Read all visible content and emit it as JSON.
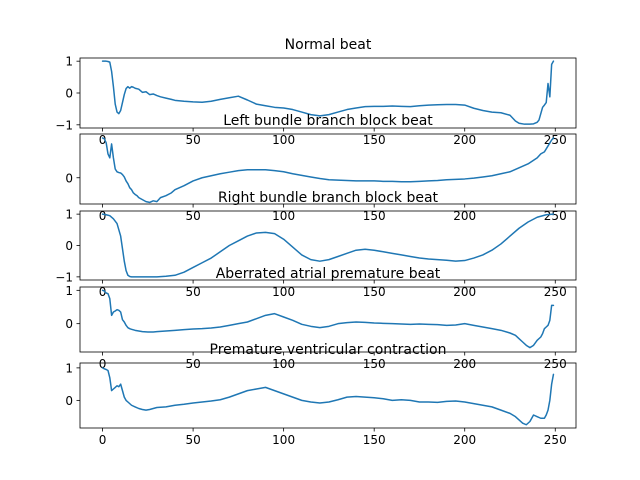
{
  "chart_data": [
    {
      "type": "line",
      "title": "Normal beat",
      "xlim": [
        -12.45,
        261.45
      ],
      "ylim": [
        -1.1,
        1.1
      ],
      "xticks": [
        0,
        50,
        100,
        150,
        200,
        250
      ],
      "yticks": [
        -1,
        0,
        1
      ],
      "series": [
        {
          "color": "#1f77b4",
          "x": [
            0,
            1,
            2,
            3,
            4,
            5,
            6,
            7,
            8,
            9,
            10,
            11,
            12,
            13,
            14,
            15,
            16,
            17,
            18,
            20,
            22,
            24,
            26,
            28,
            30,
            32,
            35,
            38,
            40,
            45,
            50,
            55,
            60,
            65,
            70,
            75,
            80,
            85,
            90,
            95,
            100,
            105,
            110,
            115,
            120,
            125,
            130,
            135,
            140,
            145,
            150,
            155,
            160,
            165,
            170,
            175,
            180,
            185,
            190,
            195,
            200,
            205,
            210,
            215,
            220,
            225,
            228,
            230,
            233,
            236,
            238,
            240,
            241,
            242,
            243,
            244,
            245,
            246,
            247,
            248,
            249
          ],
          "y": [
            1.0,
            1.0,
            1.0,
            0.99,
            0.97,
            0.68,
            0.2,
            -0.35,
            -0.6,
            -0.65,
            -0.55,
            -0.3,
            -0.05,
            0.14,
            0.2,
            0.15,
            0.2,
            0.18,
            0.15,
            0.12,
            0.02,
            0.04,
            -0.05,
            -0.03,
            -0.08,
            -0.12,
            -0.16,
            -0.2,
            -0.23,
            -0.26,
            -0.28,
            -0.29,
            -0.26,
            -0.2,
            -0.15,
            -0.1,
            -0.22,
            -0.35,
            -0.4,
            -0.45,
            -0.47,
            -0.52,
            -0.6,
            -0.68,
            -0.72,
            -0.68,
            -0.6,
            -0.52,
            -0.47,
            -0.43,
            -0.42,
            -0.42,
            -0.41,
            -0.42,
            -0.43,
            -0.4,
            -0.38,
            -0.37,
            -0.36,
            -0.36,
            -0.38,
            -0.48,
            -0.55,
            -0.6,
            -0.62,
            -0.7,
            -0.88,
            -0.95,
            -0.98,
            -0.98,
            -0.97,
            -0.92,
            -0.85,
            -0.65,
            -0.45,
            -0.38,
            -0.3,
            0.3,
            -0.12,
            0.9,
            1.0
          ]
        }
      ]
    },
    {
      "type": "line",
      "title": "Left bundle branch block beat",
      "xlim": [
        -12.45,
        261.45
      ],
      "ylim": [
        -0.66,
        1.1
      ],
      "xticks": [
        0,
        50,
        100,
        150,
        200,
        250
      ],
      "yticks": [
        0
      ],
      "series": [
        {
          "color": "#1f77b4",
          "x": [
            0,
            1,
            2,
            3,
            4,
            5,
            6,
            7,
            8,
            9,
            10,
            11,
            12,
            13,
            14,
            15,
            16,
            17,
            18,
            19,
            20,
            22,
            24,
            26,
            28,
            30,
            32,
            35,
            38,
            40,
            45,
            50,
            55,
            60,
            65,
            70,
            75,
            80,
            85,
            90,
            95,
            100,
            105,
            110,
            115,
            120,
            125,
            130,
            135,
            140,
            145,
            150,
            155,
            160,
            165,
            170,
            175,
            180,
            185,
            190,
            195,
            200,
            205,
            210,
            215,
            220,
            225,
            230,
            235,
            240,
            242,
            244,
            246,
            248,
            249
          ],
          "y": [
            1.0,
            0.98,
            0.88,
            0.6,
            0.5,
            0.85,
            0.5,
            0.22,
            0.15,
            0.13,
            0.12,
            0.08,
            0.02,
            -0.08,
            -0.15,
            -0.25,
            -0.3,
            -0.38,
            -0.42,
            -0.45,
            -0.5,
            -0.55,
            -0.6,
            -0.62,
            -0.58,
            -0.6,
            -0.5,
            -0.45,
            -0.38,
            -0.3,
            -0.2,
            -0.08,
            0.0,
            0.05,
            0.1,
            0.14,
            0.18,
            0.2,
            0.2,
            0.2,
            0.18,
            0.15,
            0.1,
            0.06,
            0.02,
            -0.02,
            -0.05,
            -0.06,
            -0.07,
            -0.08,
            -0.08,
            -0.08,
            -0.09,
            -0.09,
            -0.1,
            -0.1,
            -0.09,
            -0.08,
            -0.07,
            -0.05,
            -0.04,
            -0.03,
            -0.01,
            0.02,
            0.05,
            0.1,
            0.15,
            0.25,
            0.35,
            0.5,
            0.6,
            0.65,
            0.8,
            0.95,
            1.0
          ]
        }
      ]
    },
    {
      "type": "line",
      "title": "Right bundle branch block beat",
      "xlim": [
        -12.45,
        261.45
      ],
      "ylim": [
        -1.1,
        1.1
      ],
      "xticks": [
        0,
        50,
        100,
        150,
        200,
        250
      ],
      "yticks": [
        -1,
        0,
        1
      ],
      "series": [
        {
          "color": "#1f77b4",
          "x": [
            0,
            2,
            4,
            6,
            8,
            10,
            11,
            12,
            13,
            14,
            15,
            16,
            18,
            20,
            25,
            30,
            35,
            40,
            45,
            50,
            55,
            60,
            65,
            70,
            75,
            80,
            85,
            90,
            95,
            100,
            105,
            110,
            115,
            120,
            125,
            130,
            135,
            140,
            145,
            150,
            155,
            160,
            165,
            170,
            175,
            180,
            185,
            190,
            195,
            200,
            205,
            210,
            215,
            220,
            225,
            230,
            235,
            240,
            245,
            249
          ],
          "y": [
            1.0,
            0.98,
            0.95,
            0.85,
            0.7,
            0.3,
            -0.1,
            -0.5,
            -0.8,
            -0.95,
            -0.99,
            -1.0,
            -1.0,
            -1.0,
            -1.0,
            -1.0,
            -0.98,
            -0.95,
            -0.85,
            -0.7,
            -0.55,
            -0.4,
            -0.2,
            0.0,
            0.15,
            0.3,
            0.4,
            0.42,
            0.38,
            0.2,
            -0.05,
            -0.3,
            -0.45,
            -0.5,
            -0.45,
            -0.35,
            -0.25,
            -0.15,
            -0.12,
            -0.15,
            -0.2,
            -0.25,
            -0.3,
            -0.35,
            -0.4,
            -0.43,
            -0.45,
            -0.47,
            -0.5,
            -0.48,
            -0.4,
            -0.3,
            -0.15,
            0.05,
            0.3,
            0.55,
            0.75,
            0.9,
            0.98,
            1.0
          ]
        }
      ]
    },
    {
      "type": "line",
      "title": "Aberrated atrial premature beat",
      "xlim": [
        -12.45,
        261.45
      ],
      "ylim": [
        -0.85,
        1.1
      ],
      "xticks": [
        0,
        50,
        100,
        150,
        200,
        250
      ],
      "yticks": [
        0,
        1
      ],
      "series": [
        {
          "color": "#1f77b4",
          "x": [
            0,
            1,
            2,
            3,
            4,
            5,
            6,
            7,
            8,
            9,
            10,
            11,
            12,
            13,
            14,
            15,
            16,
            18,
            20,
            22,
            25,
            28,
            30,
            35,
            40,
            45,
            50,
            55,
            60,
            65,
            70,
            75,
            80,
            85,
            90,
            95,
            100,
            105,
            110,
            115,
            120,
            125,
            130,
            135,
            140,
            145,
            150,
            155,
            160,
            165,
            170,
            175,
            180,
            185,
            190,
            195,
            200,
            205,
            210,
            215,
            220,
            225,
            228,
            230,
            232,
            234,
            236,
            238,
            240,
            242,
            243,
            244,
            245,
            246,
            247,
            248,
            249
          ],
          "y": [
            1.0,
            0.98,
            0.92,
            0.9,
            0.75,
            0.25,
            0.35,
            0.38,
            0.42,
            0.4,
            0.35,
            0.12,
            0.05,
            -0.05,
            -0.12,
            -0.15,
            -0.17,
            -0.2,
            -0.22,
            -0.24,
            -0.25,
            -0.25,
            -0.24,
            -0.22,
            -0.2,
            -0.18,
            -0.16,
            -0.15,
            -0.13,
            -0.1,
            -0.05,
            0.0,
            0.05,
            0.15,
            0.25,
            0.3,
            0.2,
            0.1,
            -0.02,
            -0.08,
            -0.12,
            -0.08,
            0.0,
            0.03,
            0.05,
            0.04,
            0.02,
            0.01,
            0.0,
            -0.01,
            -0.02,
            -0.01,
            -0.02,
            -0.03,
            -0.05,
            -0.04,
            0.0,
            -0.05,
            -0.1,
            -0.15,
            -0.2,
            -0.28,
            -0.35,
            -0.45,
            -0.55,
            -0.65,
            -0.72,
            -0.65,
            -0.5,
            -0.4,
            -0.3,
            -0.15,
            -0.1,
            -0.05,
            0.1,
            0.55,
            0.55
          ]
        }
      ]
    },
    {
      "type": "line",
      "title": "Premature ventricular contraction",
      "xlim": [
        -12.45,
        261.45
      ],
      "ylim": [
        -0.85,
        1.15
      ],
      "xticks": [
        0,
        50,
        100,
        150,
        200,
        250
      ],
      "yticks": [
        0,
        1
      ],
      "series": [
        {
          "color": "#1f77b4",
          "x": [
            0,
            1,
            2,
            3,
            4,
            5,
            6,
            7,
            8,
            9,
            10,
            11,
            12,
            13,
            14,
            15,
            16,
            18,
            20,
            22,
            24,
            26,
            28,
            30,
            35,
            40,
            45,
            50,
            55,
            60,
            65,
            70,
            75,
            80,
            85,
            90,
            95,
            100,
            105,
            110,
            115,
            120,
            125,
            130,
            135,
            140,
            145,
            150,
            155,
            160,
            165,
            170,
            175,
            180,
            185,
            190,
            195,
            200,
            205,
            210,
            215,
            220,
            225,
            228,
            230,
            232,
            234,
            236,
            238,
            240,
            242,
            244,
            245,
            246,
            247,
            248,
            249
          ],
          "y": [
            1.0,
            0.97,
            0.95,
            0.92,
            0.7,
            0.3,
            0.35,
            0.4,
            0.45,
            0.42,
            0.5,
            0.3,
            0.1,
            0.0,
            -0.05,
            -0.1,
            -0.15,
            -0.2,
            -0.25,
            -0.28,
            -0.3,
            -0.28,
            -0.25,
            -0.22,
            -0.2,
            -0.15,
            -0.12,
            -0.08,
            -0.05,
            -0.02,
            0.02,
            0.1,
            0.2,
            0.3,
            0.35,
            0.4,
            0.3,
            0.2,
            0.1,
            0.0,
            -0.05,
            -0.08,
            -0.05,
            0.02,
            0.1,
            0.12,
            0.1,
            0.08,
            0.05,
            0.0,
            0.02,
            0.0,
            -0.05,
            -0.05,
            -0.06,
            -0.03,
            -0.02,
            -0.05,
            -0.1,
            -0.15,
            -0.2,
            -0.3,
            -0.4,
            -0.5,
            -0.6,
            -0.7,
            -0.75,
            -0.65,
            -0.45,
            -0.5,
            -0.55,
            -0.55,
            -0.45,
            -0.3,
            0.0,
            0.5,
            0.8
          ]
        }
      ]
    }
  ]
}
